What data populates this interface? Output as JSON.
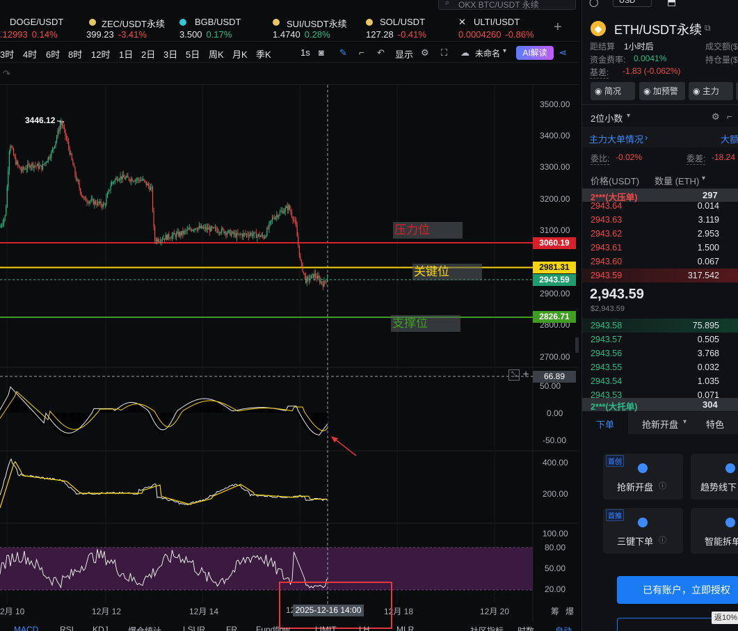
{
  "search": {
    "placeholder": "OKX BTC/USDT 永续"
  },
  "tickers": [
    {
      "symbol": "DOGE/USDT",
      "price": ".12993",
      "change": "0.14%",
      "dir": "up",
      "dot": ""
    },
    {
      "symbol": "ZEC/USDT永续",
      "price": "399.23",
      "change": "-3.41%",
      "dir": "down",
      "dot": "#e8c66a"
    },
    {
      "symbol": "BGB/USDT",
      "price": "3.500",
      "change": "0.17%",
      "dir": "up",
      "dot": "#35c6d8"
    },
    {
      "symbol": "SUI/USDT永续",
      "price": "1.4740",
      "change": "0.28%",
      "dir": "up",
      "dot": "#e8c66a"
    },
    {
      "symbol": "SOL/USDT",
      "price": "127.28",
      "change": "-0.41%",
      "dir": "down",
      "dot": "#e8c66a"
    },
    {
      "symbol": "ULTI/USDT",
      "price": "0.0004260",
      "change": "-0.86%",
      "dir": "down",
      "dot": ""
    }
  ],
  "timeframes": [
    "3时",
    "4时",
    "6时",
    "8时",
    "12时",
    "1日",
    "2日",
    "3日",
    "5日",
    "周K",
    "月K",
    "季K"
  ],
  "toolbar": {
    "interval": "1s",
    "display": "显示",
    "layout": "未命名",
    "ai": "AI解读"
  },
  "price_axis": [
    "3500.00",
    "3400.00",
    "3300.00",
    "3200.00",
    "3100.00",
    "2900.00",
    "2800.00",
    "2700.00"
  ],
  "price_tags": {
    "resistance": "3060.19",
    "key": "2981.31",
    "last": "2943.59",
    "support": "2826.71"
  },
  "annotations": {
    "resistance": "压力位",
    "key": "关键位",
    "support": "支撑位"
  },
  "high_label": "3446.12 →",
  "macd_axis": {
    "top": "50.00",
    "zero": "0.00",
    "neg": "-50.00",
    "tag": "66.89"
  },
  "vol_axis": {
    "a": "400.00",
    "b": "200.00"
  },
  "rsi_axis": {
    "a": "100.00",
    "b": "80.00",
    "c": "50.00",
    "d": "20.00"
  },
  "dates": [
    "2月 10",
    "12月 12",
    "12月 14",
    "12",
    "12月 18",
    "12月 20"
  ],
  "crosshair_date": "2025-12-16 14:00",
  "date_axis_tail": [
    "筹",
    "爆"
  ],
  "bottom_tabs": [
    "MACD",
    "RSI",
    "KDJ",
    "爆仓统计",
    "LSUR",
    "FR",
    "Fundflow",
    "LIMIT",
    "LH",
    "MLR"
  ],
  "bottom_right": {
    "indicator": "社区指标",
    "time": "时数",
    "auto": "自动"
  },
  "panel": {
    "currency": "USD",
    "pair": "ETH/USDT永续",
    "funding_label": "距结算",
    "funding_time": "1小时后",
    "volume_label": "成交额($",
    "rate_label": "资金费率:",
    "rate_value": "0.0041%",
    "oi_label": "持仓量($",
    "basis_label": "基差:",
    "basis_value": "-1.83 (-0.062%)",
    "buttons": [
      "简况",
      "加预警",
      "主力"
    ],
    "decimals": "2位小数",
    "bigorder_title": "主力大单情况",
    "bigorder_right": "大额",
    "weibi_label": "委比:",
    "weibi_value": "-0.02%",
    "weicha_label": "委差:",
    "weicha_value": "-18.24",
    "col_price": "价格(USDT)",
    "col_qty": "数量 (ETH)",
    "ask_big_label": "2***(大压单)",
    "ask_big_qty": "297",
    "asks": [
      {
        "p": "2943.64",
        "q": "0.014"
      },
      {
        "p": "2943.63",
        "q": "3.119"
      },
      {
        "p": "2943.62",
        "q": "2.953"
      },
      {
        "p": "2943.61",
        "q": "1.500"
      },
      {
        "p": "2943.60",
        "q": "0.067"
      },
      {
        "p": "2943.59",
        "q": "317.542"
      }
    ],
    "mid_price": "2,943.59",
    "mid_usd": "$2,943.59",
    "bids": [
      {
        "p": "2943.58",
        "q": "75.895"
      },
      {
        "p": "2943.57",
        "q": "0.505"
      },
      {
        "p": "2943.56",
        "q": "3.768"
      },
      {
        "p": "2943.55",
        "q": "0.032"
      },
      {
        "p": "2943.54",
        "q": "1.035"
      },
      {
        "p": "2943.53",
        "q": "0.071"
      }
    ],
    "bid_big_label": "2***(大托单)",
    "bid_big_qty": "304",
    "order_tabs": [
      "下单",
      "抢新开盘",
      "特色"
    ],
    "cards": [
      {
        "badge": "首创",
        "label": "抢新开盘"
      },
      {
        "badge": "",
        "label": "趋势线下"
      },
      {
        "badge": "首推",
        "label": "三键下单"
      },
      {
        "badge": "",
        "label": "智能拆单"
      }
    ],
    "auth_button": "已有账户，立即授权",
    "rebate": "返10%"
  }
}
